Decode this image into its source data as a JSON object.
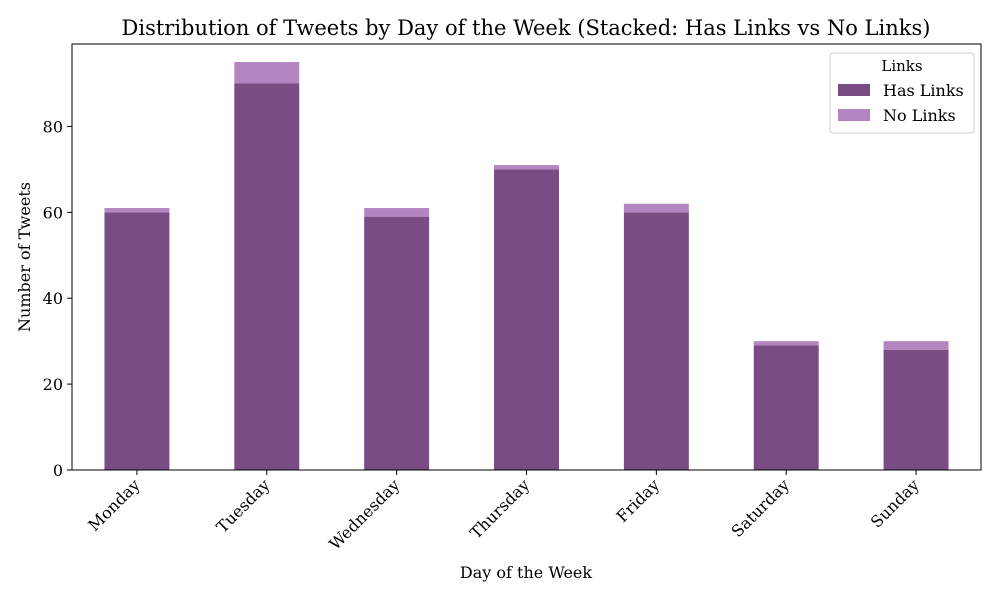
{
  "chart_data": {
    "type": "bar",
    "stacked": true,
    "title": "Distribution of Tweets by Day of the Week (Stacked: Has Links vs No Links)",
    "xlabel": "Day of the Week",
    "ylabel": "Number of Tweets",
    "categories": [
      "Monday",
      "Tuesday",
      "Wednesday",
      "Thursday",
      "Friday",
      "Saturday",
      "Sunday"
    ],
    "series": [
      {
        "name": "Has Links",
        "color": "#7a4c84",
        "values": [
          60,
          90,
          59,
          70,
          60,
          29,
          28
        ]
      },
      {
        "name": "No Links",
        "color": "#b386c1",
        "values": [
          1,
          5,
          2,
          1,
          2,
          1,
          2
        ]
      }
    ],
    "ylim": [
      0,
      100
    ],
    "yticks": [
      0,
      20,
      40,
      60,
      80
    ],
    "legend": {
      "title": "Links",
      "position": "top-right"
    },
    "grid": false
  }
}
